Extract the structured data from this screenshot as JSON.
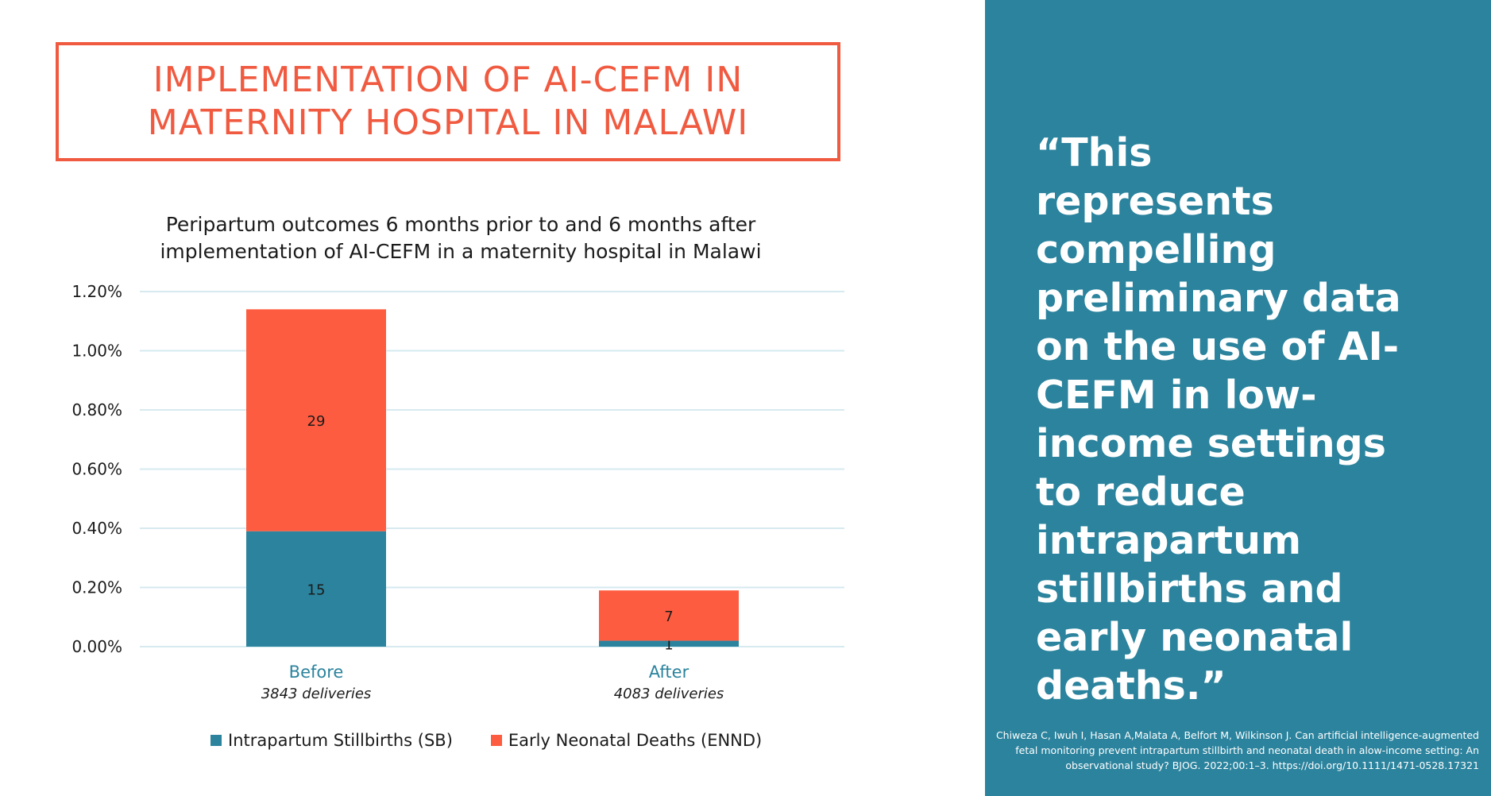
{
  "header": {
    "title": "IMPLEMENTATION OF AI-CEFM IN\nMATERNITY HOSPITAL IN MALAWI"
  },
  "quote_panel": {
    "quote": "“This represents compelling preliminary data on the use of AI-CEFM in low-income settings to reduce intrapartum stillbirths and early neonatal deaths.”",
    "citation": "Chiweza C, Iwuh I, Hasan A,Malata A, Belfort M, Wilkinson J. Can artificial intelligence-augmented fetal monitoring prevent intrapartum stillbirth and neonatal death in alow-income setting: An observational study? BJOG. 2022;00:1–3. https://doi.org/10.1111/1471-0528.17321"
  },
  "colors": {
    "accent": "#f05a40",
    "sb": "#2b839d",
    "ennd": "#fd5c40",
    "gridline": "#d6eaf0",
    "category_label": "#2b839d",
    "sidebar": "#2b839d"
  },
  "chart_data": {
    "type": "bar",
    "stacked": true,
    "title": "Peripartum outcomes 6 months prior to and 6 months after\nimplementation of AI-CEFM in a maternity hospital in Malawi",
    "categories": [
      "Before",
      "After"
    ],
    "category_sublabels": [
      "3843 deliveries",
      "4083 deliveries"
    ],
    "ylim": [
      0,
      1.2
    ],
    "yticks": [
      "0.00%",
      "0.20%",
      "0.40%",
      "0.60%",
      "0.80%",
      "1.00%",
      "1.20%"
    ],
    "ytick_values": [
      0,
      0.2,
      0.4,
      0.6,
      0.8,
      1.0,
      1.2
    ],
    "ylabel": "",
    "xlabel": "",
    "grid": true,
    "legend_position": "bottom",
    "series": [
      {
        "name": "Intrapartum Stillbirths (SB)",
        "values": [
          0.39,
          0.02
        ],
        "labels": [
          "15",
          "1"
        ]
      },
      {
        "name": "Early Neonatal Deaths (ENND)",
        "values": [
          0.75,
          0.17
        ],
        "labels": [
          "29",
          "7"
        ]
      }
    ]
  }
}
